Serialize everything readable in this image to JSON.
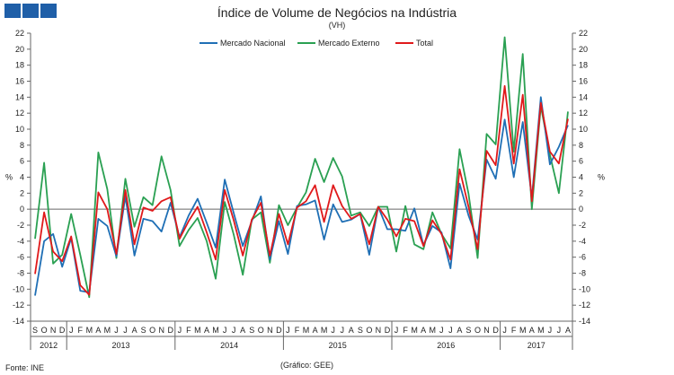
{
  "header": {
    "title": "Índice de Volume de Negócios na Indústria",
    "subtitle": "(VH)",
    "logo_color": "#1f5fa8"
  },
  "footer": {
    "source": "Fonte: INE",
    "credit": "(Gráfico: GEE)"
  },
  "chart_data": {
    "type": "line",
    "title": "Índice de Volume de Negócios na Indústria",
    "subtitle": "(VH)",
    "ylabel": "%",
    "ylabel_right": "%",
    "ylim": [
      -14,
      22
    ],
    "yticks": [
      -14,
      -12,
      -10,
      -8,
      -6,
      -4,
      -2,
      0,
      2,
      4,
      6,
      8,
      10,
      12,
      14,
      16,
      18,
      20,
      22
    ],
    "grid": false,
    "legend_position": "top-center",
    "month_labels": [
      "S",
      "O",
      "N",
      "D",
      "J",
      "F",
      "M",
      "A",
      "M",
      "J",
      "J",
      "A",
      "S",
      "O",
      "N",
      "D",
      "J",
      "F",
      "M",
      "A",
      "M",
      "J",
      "J",
      "A",
      "S",
      "O",
      "N",
      "D",
      "J",
      "F",
      "M",
      "A",
      "M",
      "J",
      "J",
      "A",
      "S",
      "O",
      "N",
      "D",
      "J",
      "F",
      "M",
      "A",
      "M",
      "J",
      "J",
      "A",
      "S",
      "O",
      "N",
      "D",
      "J",
      "F",
      "M",
      "A",
      "M",
      "J",
      "J",
      "A"
    ],
    "years": [
      {
        "label": "2012",
        "start": 0,
        "end": 3
      },
      {
        "label": "2013",
        "start": 4,
        "end": 15
      },
      {
        "label": "2014",
        "start": 16,
        "end": 27
      },
      {
        "label": "2015",
        "start": 28,
        "end": 39
      },
      {
        "label": "2016",
        "start": 40,
        "end": 51
      },
      {
        "label": "2017",
        "start": 52,
        "end": 59
      }
    ],
    "series": [
      {
        "name": "Mercado Nacional",
        "color": "#1f6fb5",
        "values": [
          -10.8,
          -4,
          -3.1,
          -7.2,
          -3.6,
          -10.2,
          -10.4,
          -1.2,
          -2.1,
          -5.9,
          1.6,
          -5.8,
          -1.2,
          -1.5,
          -2.8,
          0.8,
          -3.5,
          -0.8,
          1.3,
          -1.7,
          -4.8,
          3.7,
          -0.5,
          -4.6,
          -1.5,
          1.6,
          -6.3,
          -1.5,
          -5.6,
          0.4,
          0.6,
          1.1,
          -3.8,
          0.6,
          -1.6,
          -1.3,
          -0.6,
          -5.7,
          0.3,
          -2.5,
          -2.5,
          -2.7,
          0.1,
          -4.5,
          -2.1,
          -2.9,
          -7.4,
          3.2,
          -0.8,
          -3.8,
          6.2,
          3.8,
          11.2,
          4,
          10.9,
          1.4,
          14,
          5.6,
          7.8,
          10.5
        ]
      },
      {
        "name": "Mercado Externo",
        "color": "#2aa052",
        "values": [
          -3.7,
          5.8,
          -6.8,
          -5.7,
          -0.6,
          -5.7,
          -11,
          7.1,
          2.5,
          -6.1,
          3.8,
          -2.2,
          1.5,
          0.5,
          6.6,
          2.4,
          -4.6,
          -2.6,
          -1.1,
          -4,
          -8.7,
          0.9,
          -3.2,
          -8.2,
          -1.3,
          -0.4,
          -6.7,
          0.5,
          -2,
          0.2,
          2.1,
          6.3,
          3.4,
          6.4,
          4.1,
          -0.8,
          -0.4,
          -2.1,
          0.3,
          0.3,
          -5.3,
          0.4,
          -4.4,
          -5,
          -0.4,
          -3.1,
          -4.9,
          7.5,
          1.9,
          -6.1,
          9.4,
          8.1,
          21.5,
          7.2,
          19.4,
          0,
          12.9,
          6.8,
          2,
          12.2
        ]
      },
      {
        "name": "Total",
        "color": "#e0191b",
        "values": [
          -8.1,
          -0.4,
          -5.3,
          -6.5,
          -3.4,
          -9.5,
          -10.7,
          2.1,
          0,
          -5.6,
          2.4,
          -4.4,
          0.2,
          -0.2,
          1,
          1.5,
          -3.7,
          -1.5,
          0.3,
          -2.9,
          -6.3,
          2.4,
          -1.4,
          -5.8,
          -1.3,
          0.8,
          -5.8,
          -0.6,
          -4.4,
          0.2,
          1,
          3,
          -1.6,
          3,
          0.4,
          -1.2,
          -0.6,
          -4.4,
          0.3,
          -1.3,
          -3.4,
          -1.2,
          -1.5,
          -4.6,
          -1.4,
          -3.1,
          -6.3,
          5,
          0.3,
          -5,
          7.3,
          5.5,
          15.4,
          5.7,
          14.3,
          1,
          13.3,
          7.2,
          5.7,
          11.3
        ]
      }
    ]
  }
}
